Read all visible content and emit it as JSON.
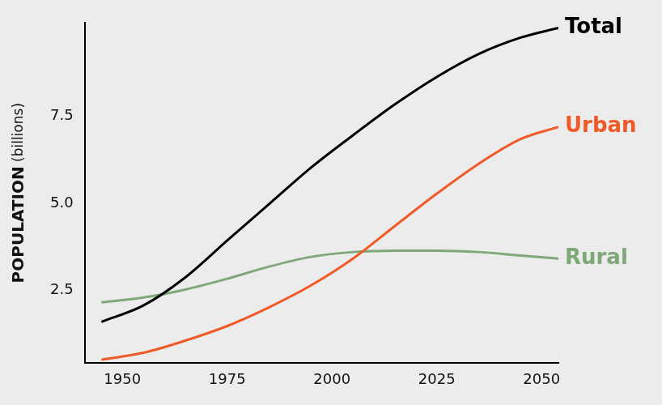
{
  "chart_data": {
    "type": "line",
    "y_label": "POPULATION (billions)",
    "x": [
      1945,
      1955,
      1965,
      1975,
      1985,
      1995,
      2005,
      2015,
      2025,
      2035,
      2045,
      2054
    ],
    "series": [
      {
        "name": "Total",
        "color": "#000000",
        "values": [
          1.59,
          2.06,
          2.87,
          3.93,
          4.98,
          6.03,
          6.96,
          7.85,
          8.64,
          9.3,
          9.77,
          10.05
        ]
      },
      {
        "name": "Urban",
        "color": "#f05a28",
        "values": [
          0.5,
          0.7,
          1.05,
          1.47,
          2.01,
          2.64,
          3.41,
          4.35,
          5.28,
          6.14,
          6.85,
          7.2
        ]
      },
      {
        "name": "Rural",
        "color": "#7fa878",
        "values": [
          2.15,
          2.29,
          2.52,
          2.83,
          3.18,
          3.46,
          3.6,
          3.64,
          3.64,
          3.6,
          3.5,
          3.41
        ]
      }
    ],
    "xlim": [
      1941,
      2054
    ],
    "xticks": [
      1950,
      1975,
      2000,
      2025,
      2050
    ],
    "ylim": [
      0.4,
      10.2
    ],
    "yticks": [
      2.5,
      {
        "value": 5,
        "label": "5.0"
      },
      7.5
    ],
    "grid": false
  }
}
